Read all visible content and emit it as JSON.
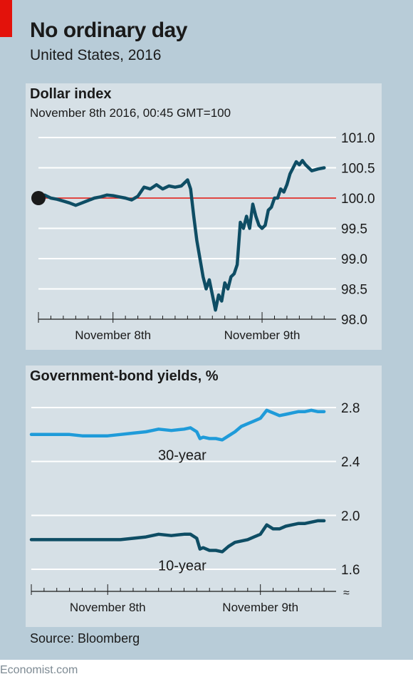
{
  "header": {
    "title": "No ordinary day",
    "subtitle": "United States, 2016"
  },
  "footer": {
    "source": "Source: Bloomberg",
    "credit": "Economist.com"
  },
  "colors": {
    "background": "#b8ccd8",
    "panel": "#d6e0e6",
    "dollar_line": "#0e4d64",
    "baseline_100": "#e3120b",
    "yield_30": "#1f9bd9",
    "yield_10": "#0e4d64"
  },
  "chart_data": [
    {
      "type": "line",
      "title": "Dollar index",
      "subtitle": "November 8th 2016, 00:45 GMT=100",
      "x_unit": "hours from 00:45 GMT, November 8th 2016",
      "x_ticks": [
        "November 8th",
        "November 9th"
      ],
      "x_tick_positions": [
        12,
        36
      ],
      "xlim": [
        0,
        47
      ],
      "ylim": [
        98,
        101
      ],
      "y_ticks": [
        "98.0",
        "98.5",
        "99.0",
        "99.5",
        "100.0",
        "100.5",
        "101.0"
      ],
      "baseline": 100,
      "grid": true,
      "series": [
        {
          "x": [
            0,
            1,
            2,
            3,
            4,
            5,
            6,
            7,
            8,
            9,
            10,
            11,
            12,
            13,
            14,
            15,
            16,
            17,
            18,
            19,
            20,
            21,
            22,
            23,
            24,
            24.5,
            25,
            25.5,
            26,
            26.5,
            27,
            27.5,
            28,
            28.5,
            29,
            29.5,
            30,
            30.5,
            31,
            31.5,
            32,
            32.5,
            33,
            33.5,
            34,
            34.5,
            35,
            35.5,
            36,
            36.5,
            37,
            37.5,
            38,
            38.5,
            39,
            39.5,
            40,
            40.5,
            41,
            41.5,
            42,
            42.5,
            43,
            43.5,
            44,
            45,
            46
          ],
          "values": [
            100.0,
            100.05,
            100.0,
            99.98,
            99.95,
            99.92,
            99.88,
            99.92,
            99.96,
            100.0,
            100.02,
            100.05,
            100.04,
            100.02,
            100.0,
            99.97,
            100.03,
            100.18,
            100.15,
            100.22,
            100.15,
            100.2,
            100.18,
            100.2,
            100.3,
            100.15,
            99.7,
            99.3,
            99.0,
            98.7,
            98.5,
            98.65,
            98.4,
            98.15,
            98.4,
            98.3,
            98.6,
            98.5,
            98.7,
            98.75,
            98.9,
            99.6,
            99.5,
            99.7,
            99.5,
            99.9,
            99.7,
            99.55,
            99.5,
            99.55,
            99.8,
            99.85,
            100.0,
            100.0,
            100.15,
            100.1,
            100.22,
            100.4,
            100.5,
            100.6,
            100.55,
            100.62,
            100.55,
            100.5,
            100.45,
            100.48,
            100.5
          ]
        }
      ]
    },
    {
      "type": "line",
      "title": "Government-bond yields, %",
      "x_unit": "hours from 00:45 GMT, November 8th 2016",
      "x_ticks": [
        "November 8th",
        "November 9th"
      ],
      "x_tick_positions": [
        12,
        36
      ],
      "xlim": [
        0,
        47
      ],
      "ylim": [
        1.6,
        2.8
      ],
      "y_ticks": [
        "1.6",
        "2.0",
        "2.4",
        "2.8"
      ],
      "axis_break": true,
      "grid": true,
      "series": [
        {
          "name": "30-year",
          "x": [
            0,
            2,
            4,
            6,
            8,
            10,
            12,
            14,
            16,
            18,
            19,
            20,
            22,
            24,
            25,
            26,
            26.5,
            27,
            28,
            29,
            30,
            31,
            32,
            33,
            34,
            35,
            36,
            37,
            38,
            39,
            40,
            41,
            42,
            43,
            44,
            45,
            46
          ],
          "values": [
            2.6,
            2.6,
            2.6,
            2.6,
            2.59,
            2.59,
            2.59,
            2.6,
            2.61,
            2.62,
            2.63,
            2.64,
            2.63,
            2.64,
            2.65,
            2.62,
            2.57,
            2.58,
            2.57,
            2.57,
            2.56,
            2.59,
            2.62,
            2.66,
            2.68,
            2.7,
            2.72,
            2.78,
            2.76,
            2.74,
            2.75,
            2.76,
            2.77,
            2.77,
            2.78,
            2.77,
            2.77
          ]
        },
        {
          "name": "10-year",
          "x": [
            0,
            2,
            4,
            6,
            8,
            10,
            12,
            14,
            16,
            18,
            19,
            20,
            22,
            24,
            25,
            26,
            26.5,
            27,
            28,
            29,
            30,
            31,
            32,
            33,
            34,
            35,
            36,
            37,
            38,
            39,
            40,
            41,
            42,
            43,
            44,
            45,
            46
          ],
          "values": [
            1.82,
            1.82,
            1.82,
            1.82,
            1.82,
            1.82,
            1.82,
            1.82,
            1.83,
            1.84,
            1.85,
            1.86,
            1.85,
            1.86,
            1.86,
            1.83,
            1.75,
            1.76,
            1.74,
            1.74,
            1.73,
            1.77,
            1.8,
            1.81,
            1.82,
            1.84,
            1.86,
            1.93,
            1.9,
            1.9,
            1.92,
            1.93,
            1.94,
            1.94,
            1.95,
            1.96,
            1.96
          ]
        }
      ]
    }
  ]
}
